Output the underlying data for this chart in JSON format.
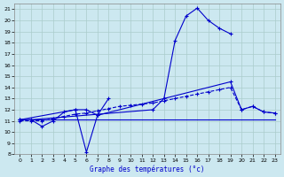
{
  "xlabel": "Graphe des températures (°c)",
  "bg_color": "#cce8f0",
  "grid_color": "#aacccc",
  "line_color": "#0000cc",
  "xlim": [
    -0.5,
    23.5
  ],
  "ylim": [
    8,
    21.5
  ],
  "xticks": [
    0,
    1,
    2,
    3,
    4,
    5,
    6,
    7,
    8,
    9,
    10,
    11,
    12,
    13,
    14,
    15,
    16,
    17,
    18,
    19,
    20,
    21,
    22,
    23
  ],
  "yticks": [
    8,
    9,
    10,
    11,
    12,
    13,
    14,
    15,
    16,
    17,
    18,
    19,
    20,
    21
  ],
  "series": [
    {
      "x": [
        0,
        1,
        12,
        13,
        14,
        15,
        16,
        17,
        18,
        19
      ],
      "y": [
        11.1,
        11.1,
        12.0,
        13.0,
        18.2,
        20.4,
        21.1,
        20.0,
        19.3,
        18.8
      ],
      "style": "-",
      "marker": "+"
    },
    {
      "x": [
        0,
        5,
        6,
        7,
        19,
        20,
        21,
        22,
        23
      ],
      "y": [
        11.1,
        12.0,
        12.0,
        11.5,
        14.5,
        12.0,
        12.3,
        11.8,
        11.7
      ],
      "style": "-",
      "marker": "+"
    },
    {
      "x": [
        0,
        1,
        2,
        3,
        4,
        5,
        6,
        7,
        8
      ],
      "y": [
        11.1,
        11.1,
        10.5,
        11.0,
        11.8,
        12.0,
        8.2,
        11.5,
        13.0
      ],
      "style": "-",
      "marker": "+"
    },
    {
      "x": [
        0,
        1,
        2,
        3,
        4,
        5,
        6,
        7,
        8,
        9,
        10,
        11,
        12,
        13,
        14,
        15,
        16,
        17,
        18,
        19,
        20,
        21,
        22,
        23
      ],
      "y": [
        11.0,
        11.0,
        11.0,
        11.2,
        11.4,
        11.6,
        11.7,
        11.9,
        12.1,
        12.3,
        12.4,
        12.5,
        12.6,
        12.8,
        13.0,
        13.2,
        13.4,
        13.6,
        13.8,
        14.0,
        12.0,
        12.3,
        11.8,
        11.7
      ],
      "style": "--",
      "marker": "+"
    },
    {
      "x": [
        0,
        23
      ],
      "y": [
        11.1,
        11.1
      ],
      "style": "-",
      "marker": null
    }
  ]
}
